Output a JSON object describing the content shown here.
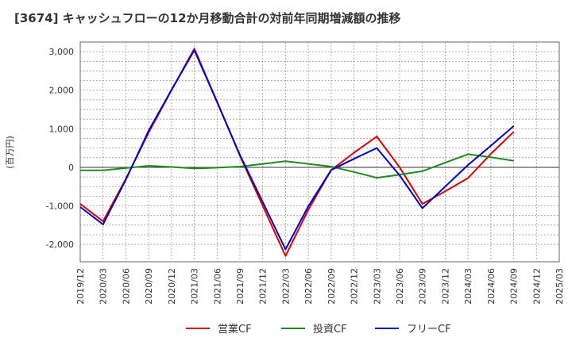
{
  "chart_data": {
    "type": "line",
    "title": "[3674]  キャッシュフローの12か月移動合計の対前年同期増減額の推移",
    "ylabel": "(百万円)",
    "xlabel": "",
    "x": [
      "2019/12",
      "2020/03",
      "2020/06",
      "2020/09",
      "2020/12",
      "2021/03",
      "2021/06",
      "2021/09",
      "2021/12",
      "2022/03",
      "2022/06",
      "2022/09",
      "2022/12",
      "2023/03",
      "2023/06",
      "2023/09",
      "2023/12",
      "2024/03",
      "2024/06",
      "2024/09",
      "2024/12",
      "2025/03"
    ],
    "ylim": [
      -2450,
      3250
    ],
    "yticks": [
      -2000,
      -1000,
      0,
      1000,
      2000,
      3000
    ],
    "ytick_labels": [
      "-2,000",
      "-1,000",
      "0",
      "1,000",
      "2,000",
      "3,000"
    ],
    "grid": true,
    "legend_position": "bottom",
    "series": [
      {
        "name": "営業CF",
        "color": "#dd0000",
        "values": [
          -950,
          -1400,
          -300,
          900,
          2000,
          3080,
          1700,
          300,
          -1000,
          -2300,
          -1100,
          -70,
          380,
          800,
          0,
          -950,
          -620,
          -280,
          350,
          920,
          null,
          null
        ]
      },
      {
        "name": "投資CF",
        "color": "#228822",
        "values": [
          -80,
          -80,
          -20,
          40,
          10,
          -30,
          -10,
          20,
          90,
          160,
          90,
          20,
          -120,
          -270,
          -190,
          -100,
          120,
          340,
          260,
          170,
          null,
          null
        ]
      },
      {
        "name": "フリーCF",
        "color": "#0000cc",
        "values": [
          -1030,
          -1480,
          -320,
          950,
          2010,
          3040,
          1690,
          320,
          -900,
          -2130,
          -1010,
          -70,
          220,
          500,
          -210,
          -1060,
          -500,
          60,
          560,
          1070,
          null,
          null
        ]
      }
    ]
  }
}
